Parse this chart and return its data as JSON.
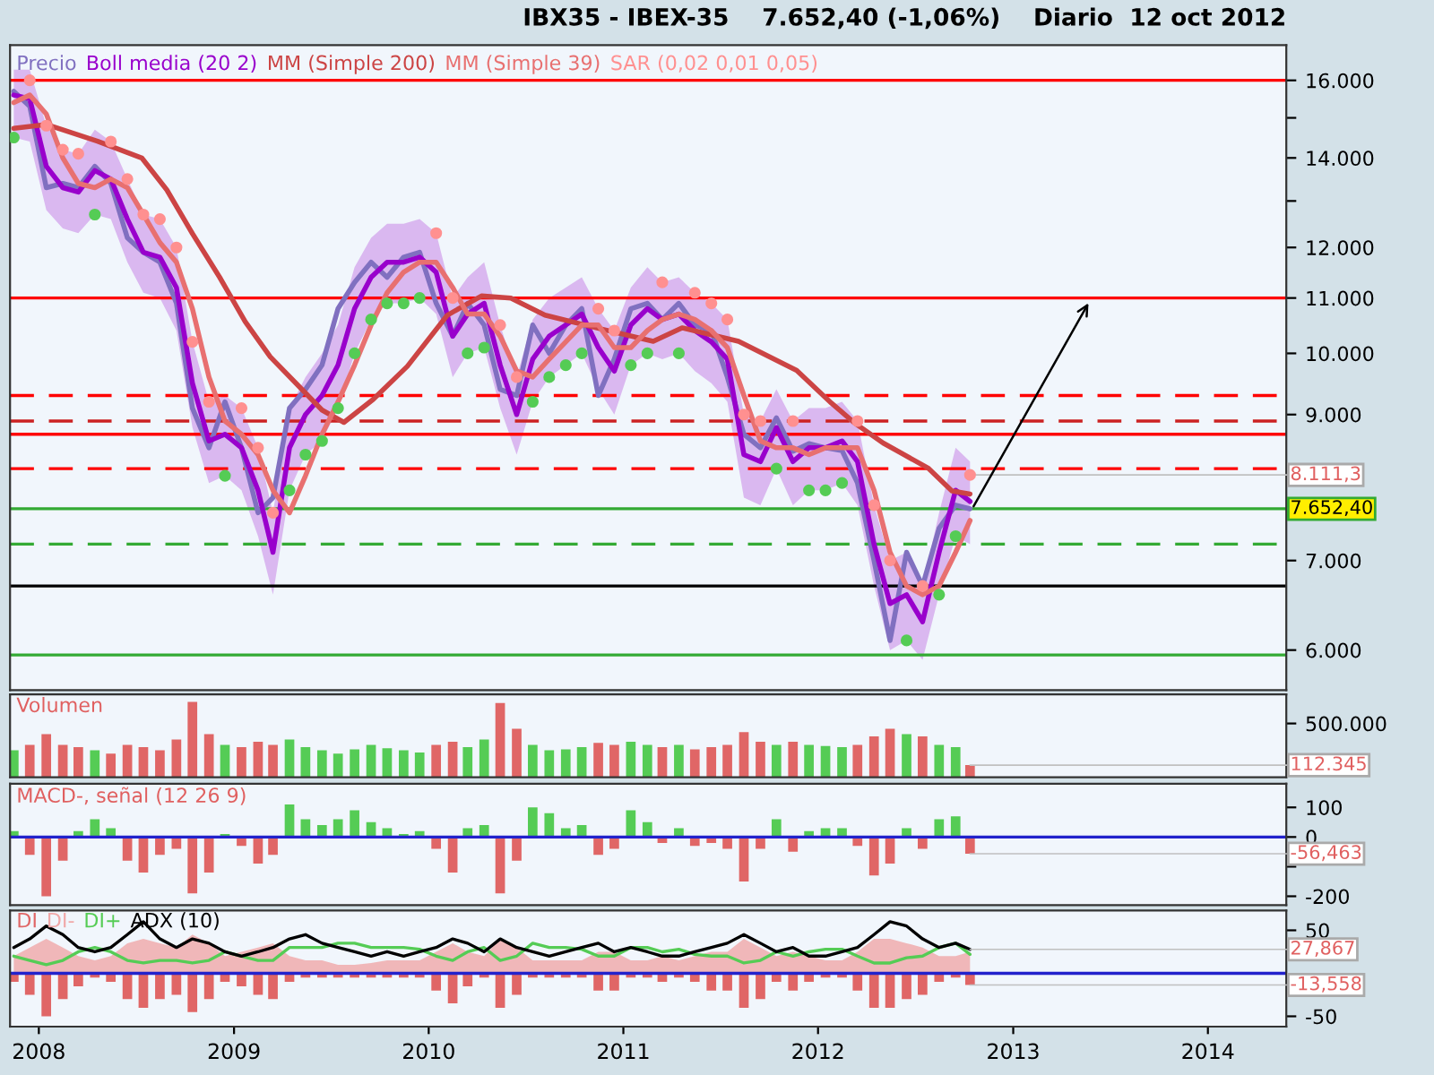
{
  "chart_data": [
    {
      "type": "line",
      "title": "IBX35 - IBEX-35    7.652,40 (-1,06%)    Diario  12 oct 2012",
      "log": "y",
      "x": [
        "2007-11-15",
        "2007-12-15",
        "2008-01-15",
        "2008-02-15",
        "2008-03-15",
        "2008-04-15",
        "2008-05-15",
        "2008-06-15",
        "2008-07-15",
        "2008-08-15",
        "2008-09-15",
        "2008-10-15",
        "2008-11-15",
        "2008-12-15",
        "2009-01-15",
        "2009-02-15",
        "2009-03-15",
        "2009-04-15",
        "2009-05-15",
        "2009-06-15",
        "2009-07-15",
        "2009-08-15",
        "2009-09-15",
        "2009-10-15",
        "2009-11-15",
        "2009-12-15",
        "2010-01-15",
        "2010-02-15",
        "2010-03-15",
        "2010-04-15",
        "2010-05-15",
        "2010-06-15",
        "2010-07-15",
        "2010-08-15",
        "2010-09-15",
        "2010-10-15",
        "2010-11-15",
        "2010-12-15",
        "2011-01-15",
        "2011-02-15",
        "2011-03-15",
        "2011-04-15",
        "2011-05-15",
        "2011-06-15",
        "2011-07-15",
        "2011-08-15",
        "2011-09-15",
        "2011-10-15",
        "2011-11-15",
        "2011-12-15",
        "2012-01-15",
        "2012-02-15",
        "2012-03-15",
        "2012-04-15",
        "2012-05-15",
        "2012-06-15",
        "2012-07-15",
        "2012-08-15",
        "2012-09-15",
        "2012-10-12"
      ],
      "series": [
        {
          "name": "Precio",
          "type": "line",
          "color": "#8070c0",
          "values": [
            15700,
            15300,
            13300,
            13400,
            13300,
            13800,
            13400,
            12200,
            11900,
            11700,
            10900,
            9100,
            8500,
            9200,
            8500,
            7600,
            7800,
            9100,
            9400,
            9800,
            10800,
            11300,
            11700,
            11400,
            11800,
            11900,
            10900,
            10300,
            10900,
            10500,
            9400,
            9300,
            10500,
            10000,
            10500,
            10800,
            9300,
            9900,
            10800,
            10900,
            10600,
            10900,
            10500,
            10400,
            9600,
            8700,
            8500,
            8950,
            8450,
            8560,
            8500,
            8460,
            8000,
            7000,
            6100,
            7100,
            6700,
            7400,
            7700,
            7652.4
          ]
        },
        {
          "name": "Boll media (20 2)",
          "type": "line",
          "color": "#9900cc",
          "values": [
            15600,
            15500,
            13800,
            13300,
            13200,
            13700,
            13500,
            12600,
            11900,
            11800,
            11200,
            9500,
            8600,
            8700,
            8500,
            7900,
            7100,
            8500,
            9000,
            9300,
            9800,
            10800,
            11400,
            11700,
            11700,
            11800,
            11500,
            10300,
            10700,
            10900,
            9800,
            9000,
            9900,
            10300,
            10500,
            10700,
            10100,
            9700,
            10500,
            10800,
            10600,
            10700,
            10400,
            10200,
            9900,
            8400,
            8300,
            8800,
            8300,
            8500,
            8500,
            8600,
            8300,
            7200,
            6500,
            6600,
            6300,
            7100,
            7900,
            7750
          ],
          "lower": [
            14500,
            14400,
            12800,
            12400,
            12300,
            12700,
            12600,
            11700,
            11100,
            11000,
            10400,
            8800,
            8000,
            8100,
            7900,
            7300,
            6600,
            7900,
            8400,
            8600,
            9100,
            10000,
            10600,
            10900,
            10900,
            11000,
            10700,
            9600,
            10000,
            10100,
            9100,
            8400,
            9200,
            9600,
            9800,
            10000,
            9400,
            9000,
            9800,
            10000,
            9900,
            10000,
            9700,
            9500,
            9200,
            7800,
            7700,
            8200,
            7700,
            7900,
            7900,
            8000,
            7700,
            6700,
            6000,
            6100,
            5900,
            6600,
            7300,
            7200
          ],
          "upper": [
            16300,
            16300,
            14800,
            14200,
            14100,
            14700,
            14400,
            13500,
            12700,
            12600,
            12000,
            10200,
            9200,
            9300,
            9100,
            8500,
            7600,
            9100,
            9600,
            10000,
            10500,
            11600,
            12200,
            12500,
            12500,
            12600,
            12300,
            11000,
            11400,
            11700,
            10500,
            9600,
            10600,
            11000,
            11200,
            11400,
            10800,
            10400,
            11200,
            11600,
            11300,
            11400,
            11100,
            10900,
            10600,
            9000,
            8900,
            9400,
            8900,
            9100,
            9100,
            9200,
            8900,
            7700,
            7000,
            7100,
            6700,
            7600,
            8500,
            8300
          ]
        },
        {
          "name": "MM (Simple 200)",
          "type": "line",
          "color": "#cc4444",
          "x": [
            "2007-11-15",
            "2008-01-15",
            "2008-04-20",
            "2008-07-12",
            "2008-08-28",
            "2008-10-15",
            "2008-12-05",
            "2009-01-22",
            "2009-03-10",
            "2009-04-27",
            "2009-06-15",
            "2009-07-26",
            "2009-09-19",
            "2009-11-22",
            "2010-02-05",
            "2010-04-10",
            "2010-06-04",
            "2010-08-07",
            "2010-11-11",
            "2011-02-26",
            "2011-04-21",
            "2011-08-05",
            "2011-11-22",
            "2012-01-26",
            "2012-03-08",
            "2012-05-02",
            "2012-07-25",
            "2012-09-08",
            "2012-10-12"
          ],
          "values": [
            14730,
            14830,
            14410,
            14000,
            13250,
            12290,
            11400,
            10560,
            9940,
            9500,
            9070,
            8880,
            9240,
            9780,
            10680,
            11040,
            11000,
            10680,
            10450,
            10210,
            10450,
            10210,
            9710,
            9180,
            8880,
            8570,
            8210,
            7890,
            7850
          ]
        },
        {
          "name": "MM (Simple 39)",
          "type": "line",
          "color": "#e87070",
          "values": [
            15400,
            15600,
            15100,
            14000,
            13400,
            13300,
            13500,
            13300,
            12700,
            12100,
            11700,
            10800,
            9600,
            8900,
            8700,
            8400,
            7900,
            7600,
            8100,
            8700,
            9200,
            9800,
            10500,
            11100,
            11500,
            11700,
            11700,
            11200,
            10700,
            10700,
            10300,
            9700,
            9600,
            9900,
            10200,
            10500,
            10500,
            10100,
            10100,
            10400,
            10600,
            10700,
            10600,
            10400,
            10100,
            9300,
            8600,
            8500,
            8500,
            8400,
            8500,
            8500,
            8500,
            7900,
            7100,
            6700,
            6600,
            6700,
            7100,
            7500
          ]
        },
        {
          "name": "SAR (0,02 0,01 0,05)",
          "type": "scatter",
          "color": "#ff9090",
          "values": [
            14500,
            16000,
            14800,
            14200,
            14100,
            12700,
            14400,
            13500,
            12700,
            12600,
            12000,
            10200,
            9200,
            8100,
            9100,
            8500,
            7600,
            7900,
            8400,
            8600,
            9100,
            10000,
            10600,
            10900,
            10900,
            11000,
            12300,
            11000,
            10000,
            10100,
            10500,
            9600,
            9200,
            9600,
            9800,
            10000,
            10800,
            10400,
            9800,
            10000,
            11300,
            10000,
            11100,
            10900,
            10600,
            9000,
            8900,
            8200,
            8900,
            7900,
            7900,
            8000,
            8900,
            7700,
            7000,
            6100,
            6700,
            6600,
            7300,
            8111.3
          ],
          "colors": [
            "#55cc55",
            "#ff9090",
            "#ff9090",
            "#ff9090",
            "#ff9090",
            "#55cc55",
            "#ff9090",
            "#ff9090",
            "#ff9090",
            "#ff9090",
            "#ff9090",
            "#ff9090",
            "#ff9090",
            "#55cc55",
            "#ff9090",
            "#ff9090",
            "#ff9090",
            "#55cc55",
            "#55cc55",
            "#55cc55",
            "#55cc55",
            "#55cc55",
            "#55cc55",
            "#55cc55",
            "#55cc55",
            "#55cc55",
            "#ff9090",
            "#ff9090",
            "#55cc55",
            "#55cc55",
            "#ff9090",
            "#ff9090",
            "#55cc55",
            "#55cc55",
            "#55cc55",
            "#55cc55",
            "#ff9090",
            "#ff9090",
            "#55cc55",
            "#55cc55",
            "#ff9090",
            "#55cc55",
            "#ff9090",
            "#ff9090",
            "#ff9090",
            "#ff9090",
            "#ff9090",
            "#55cc55",
            "#ff9090",
            "#55cc55",
            "#55cc55",
            "#55cc55",
            "#ff9090",
            "#ff9090",
            "#ff9090",
            "#55cc55",
            "#ff9090",
            "#55cc55",
            "#55cc55",
            "#ff9090"
          ]
        }
      ],
      "xlim": [
        "2007-11-08",
        "2014-05-28"
      ],
      "ylim": [
        5600,
        17000
      ],
      "yticks": [
        {
          "value": 6000,
          "label": "6.000"
        },
        {
          "value": 7000,
          "label": "7.000"
        },
        {
          "value": 8000,
          "label": null
        },
        {
          "value": 9000,
          "label": "9.000"
        },
        {
          "value": 10000,
          "label": "10.000"
        },
        {
          "value": 11000,
          "label": "11.000"
        },
        {
          "value": 12000,
          "label": "12.000"
        },
        {
          "value": 13000,
          "label": null
        },
        {
          "value": 14000,
          "label": "14.000"
        },
        {
          "value": 15000,
          "label": null
        },
        {
          "value": 16000,
          "label": "16.000"
        }
      ],
      "tick_labels": "y",
      "ref_lines": [
        {
          "axis": "y",
          "value": 16000,
          "color": "#ff0000",
          "line_style": "solid"
        },
        {
          "axis": "y",
          "value": 11000,
          "color": "#ff0000",
          "line_style": "solid"
        },
        {
          "axis": "y",
          "value": 9300,
          "color": "#ff0000",
          "line_style": "dashed"
        },
        {
          "axis": "y",
          "value": 8900,
          "color": "#cc2222",
          "line_style": "dashed"
        },
        {
          "axis": "y",
          "value": 8700,
          "color": "#ff0000",
          "line_style": "solid"
        },
        {
          "axis": "y",
          "value": 8200,
          "color": "#ff0000",
          "line_style": "dashed"
        },
        {
          "axis": "y",
          "value": 7652.4,
          "color": "#33aa33",
          "line_style": "solid",
          "label": "7.652,40"
        },
        {
          "axis": "y",
          "value": 7200,
          "color": "#33aa33",
          "line_style": "dashed"
        },
        {
          "axis": "y",
          "value": 6700,
          "color": "#000000",
          "line_style": "solid"
        },
        {
          "axis": "y",
          "value": 5950,
          "color": "#33aa33",
          "line_style": "solid"
        }
      ],
      "annotations": [
        {
          "text": "8.111,3",
          "x": "2012-10-12",
          "y": 8111.3
        }
      ],
      "legend": "top left"
    },
    {
      "type": "bar",
      "title": "Volumen",
      "x": [
        "2007-11-15",
        "2007-12-15",
        "2008-01-15",
        "2008-02-15",
        "2008-03-15",
        "2008-04-15",
        "2008-05-15",
        "2008-06-15",
        "2008-07-15",
        "2008-08-15",
        "2008-09-15",
        "2008-10-15",
        "2008-11-15",
        "2008-12-15",
        "2009-01-15",
        "2009-02-15",
        "2009-03-15",
        "2009-04-15",
        "2009-05-15",
        "2009-06-15",
        "2009-07-15",
        "2009-08-15",
        "2009-09-15",
        "2009-10-15",
        "2009-11-15",
        "2009-12-15",
        "2010-01-15",
        "2010-02-15",
        "2010-03-15",
        "2010-04-15",
        "2010-05-15",
        "2010-06-15",
        "2010-07-15",
        "2010-08-15",
        "2010-09-15",
        "2010-10-15",
        "2010-11-15",
        "2010-12-15",
        "2011-01-15",
        "2011-02-15",
        "2011-03-15",
        "2011-04-15",
        "2011-05-15",
        "2011-06-15",
        "2011-07-15",
        "2011-08-15",
        "2011-09-15",
        "2011-10-15",
        "2011-11-15",
        "2011-12-15",
        "2012-01-15",
        "2012-02-15",
        "2012-03-15",
        "2012-04-15",
        "2012-05-15",
        "2012-06-15",
        "2012-07-15",
        "2012-08-15",
        "2012-09-15",
        "2012-10-12"
      ],
      "values": [
        250000,
        300000,
        400000,
        300000,
        280000,
        250000,
        220000,
        300000,
        280000,
        250000,
        350000,
        700000,
        400000,
        300000,
        280000,
        330000,
        300000,
        350000,
        280000,
        250000,
        220000,
        260000,
        300000,
        270000,
        250000,
        230000,
        300000,
        330000,
        280000,
        350000,
        690000,
        450000,
        300000,
        250000,
        260000,
        280000,
        320000,
        300000,
        330000,
        300000,
        280000,
        300000,
        260000,
        280000,
        300000,
        420000,
        330000,
        300000,
        330000,
        300000,
        290000,
        280000,
        300000,
        380000,
        450000,
        400000,
        380000,
        300000,
        280000,
        112345
      ],
      "colors": [
        "#55cc55",
        "#e06666",
        "#e06666",
        "#e06666",
        "#e06666",
        "#55cc55",
        "#e06666",
        "#e06666",
        "#e06666",
        "#e06666",
        "#e06666",
        "#e06666",
        "#e06666",
        "#55cc55",
        "#e06666",
        "#e06666",
        "#e06666",
        "#55cc55",
        "#55cc55",
        "#55cc55",
        "#55cc55",
        "#55cc55",
        "#55cc55",
        "#55cc55",
        "#55cc55",
        "#55cc55",
        "#e06666",
        "#e06666",
        "#55cc55",
        "#55cc55",
        "#e06666",
        "#e06666",
        "#55cc55",
        "#55cc55",
        "#55cc55",
        "#55cc55",
        "#e06666",
        "#e06666",
        "#55cc55",
        "#55cc55",
        "#e06666",
        "#55cc55",
        "#e06666",
        "#e06666",
        "#e06666",
        "#e06666",
        "#e06666",
        "#55cc55",
        "#e06666",
        "#55cc55",
        "#55cc55",
        "#55cc55",
        "#e06666",
        "#e06666",
        "#e06666",
        "#55cc55",
        "#e06666",
        "#55cc55",
        "#55cc55",
        "#e06666"
      ],
      "xlim": [
        "2007-11-08",
        "2014-05-28"
      ],
      "ylim": [
        0,
        770000
      ],
      "yticks": [
        {
          "value": 500000,
          "label": "500.000"
        }
      ],
      "tick_labels": "y",
      "annotations": [
        {
          "text": "112.345",
          "x": "2012-10-12",
          "y": 112345
        }
      ]
    },
    {
      "type": "bar",
      "title": "MACD-, señal (12 26 9)",
      "x": [
        "2007-11-15",
        "2007-12-15",
        "2008-01-15",
        "2008-02-15",
        "2008-03-15",
        "2008-04-15",
        "2008-05-15",
        "2008-06-15",
        "2008-07-15",
        "2008-08-15",
        "2008-09-15",
        "2008-10-15",
        "2008-11-15",
        "2008-12-15",
        "2009-01-15",
        "2009-02-15",
        "2009-03-15",
        "2009-04-15",
        "2009-05-15",
        "2009-06-15",
        "2009-07-15",
        "2009-08-15",
        "2009-09-15",
        "2009-10-15",
        "2009-11-15",
        "2009-12-15",
        "2010-01-15",
        "2010-02-15",
        "2010-03-15",
        "2010-04-15",
        "2010-05-15",
        "2010-06-15",
        "2010-07-15",
        "2010-08-15",
        "2010-09-15",
        "2010-10-15",
        "2010-11-15",
        "2010-12-15",
        "2011-01-15",
        "2011-02-15",
        "2011-03-15",
        "2011-04-15",
        "2011-05-15",
        "2011-06-15",
        "2011-07-15",
        "2011-08-15",
        "2011-09-15",
        "2011-10-15",
        "2011-11-15",
        "2011-12-15",
        "2012-01-15",
        "2012-02-15",
        "2012-03-15",
        "2012-04-15",
        "2012-05-15",
        "2012-06-15",
        "2012-07-15",
        "2012-08-15",
        "2012-09-15",
        "2012-10-12"
      ],
      "values": [
        20,
        -60,
        -200,
        -80,
        20,
        60,
        30,
        -80,
        -120,
        -60,
        -40,
        -190,
        -120,
        10,
        -30,
        -90,
        -60,
        110,
        60,
        40,
        60,
        90,
        50,
        30,
        10,
        20,
        -40,
        -120,
        30,
        40,
        -190,
        -80,
        100,
        80,
        30,
        40,
        -60,
        -40,
        90,
        50,
        -20,
        30,
        -30,
        -20,
        -40,
        -150,
        -40,
        60,
        -50,
        20,
        30,
        30,
        -30,
        -130,
        -90,
        30,
        -40,
        60,
        70,
        -56.463
      ],
      "colors": [
        "#55cc55",
        "#e06666",
        "#e06666",
        "#e06666",
        "#55cc55",
        "#55cc55",
        "#55cc55",
        "#e06666",
        "#e06666",
        "#e06666",
        "#e06666",
        "#e06666",
        "#e06666",
        "#55cc55",
        "#e06666",
        "#e06666",
        "#e06666",
        "#55cc55",
        "#55cc55",
        "#55cc55",
        "#55cc55",
        "#55cc55",
        "#55cc55",
        "#55cc55",
        "#55cc55",
        "#55cc55",
        "#e06666",
        "#e06666",
        "#55cc55",
        "#55cc55",
        "#e06666",
        "#e06666",
        "#55cc55",
        "#55cc55",
        "#55cc55",
        "#55cc55",
        "#e06666",
        "#e06666",
        "#55cc55",
        "#55cc55",
        "#e06666",
        "#55cc55",
        "#e06666",
        "#e06666",
        "#e06666",
        "#e06666",
        "#e06666",
        "#55cc55",
        "#e06666",
        "#55cc55",
        "#55cc55",
        "#55cc55",
        "#e06666",
        "#e06666",
        "#e06666",
        "#55cc55",
        "#e06666",
        "#55cc55",
        "#55cc55",
        "#e06666"
      ],
      "xlim": [
        "2007-11-08",
        "2014-05-28"
      ],
      "ylim": [
        -230,
        180
      ],
      "yticks": [
        100,
        0,
        {
          "value": -100,
          "label": null
        },
        -200
      ],
      "tick_labels": "y",
      "ref_lines": [
        {
          "axis": "y",
          "value": 0,
          "color": "#2222cc",
          "line_style": "solid"
        }
      ],
      "annotations": [
        {
          "text": "-56,463",
          "x": "2012-10-12",
          "y": -56.463
        }
      ]
    },
    {
      "type": "line",
      "x": [
        "2007-11-15",
        "2007-12-15",
        "2008-01-15",
        "2008-02-15",
        "2008-03-15",
        "2008-04-15",
        "2008-05-15",
        "2008-06-15",
        "2008-07-15",
        "2008-08-15",
        "2008-09-15",
        "2008-10-15",
        "2008-11-15",
        "2008-12-15",
        "2009-01-15",
        "2009-02-15",
        "2009-03-15",
        "2009-04-15",
        "2009-05-15",
        "2009-06-15",
        "2009-07-15",
        "2009-08-15",
        "2009-09-15",
        "2009-10-15",
        "2009-11-15",
        "2009-12-15",
        "2010-01-15",
        "2010-02-15",
        "2010-03-15",
        "2010-04-15",
        "2010-05-15",
        "2010-06-15",
        "2010-07-15",
        "2010-08-15",
        "2010-09-15",
        "2010-10-15",
        "2010-11-15",
        "2010-12-15",
        "2011-01-15",
        "2011-02-15",
        "2011-03-15",
        "2011-04-15",
        "2011-05-15",
        "2011-06-15",
        "2011-07-15",
        "2011-08-15",
        "2011-09-15",
        "2011-10-15",
        "2011-11-15",
        "2011-12-15",
        "2012-01-15",
        "2012-02-15",
        "2012-03-15",
        "2012-04-15",
        "2012-05-15",
        "2012-06-15",
        "2012-07-15",
        "2012-08-15",
        "2012-09-15",
        "2012-10-12"
      ],
      "series": [
        {
          "name": "DI",
          "type": "bar",
          "color": "#e06666",
          "values": [
            -10,
            -25,
            -50,
            -30,
            -15,
            -5,
            -10,
            -30,
            -40,
            -30,
            -25,
            -45,
            -30,
            -10,
            -15,
            -25,
            -30,
            -10,
            -5,
            -5,
            -5,
            -5,
            -5,
            -5,
            -5,
            -5,
            -20,
            -35,
            -15,
            -5,
            -40,
            -25,
            -5,
            -5,
            -5,
            -5,
            -20,
            -20,
            -5,
            -5,
            -10,
            -5,
            -10,
            -20,
            -20,
            -40,
            -30,
            -10,
            -20,
            -10,
            -5,
            -5,
            -20,
            -40,
            -40,
            -30,
            -25,
            -10,
            -5,
            -13.558
          ]
        },
        {
          "name": "DI-",
          "type": "area",
          "color": "#f0a8a8",
          "values": [
            20,
            30,
            40,
            30,
            20,
            15,
            20,
            35,
            40,
            35,
            30,
            45,
            35,
            20,
            25,
            30,
            35,
            20,
            15,
            15,
            10,
            10,
            12,
            15,
            15,
            15,
            25,
            35,
            25,
            20,
            40,
            30,
            15,
            15,
            15,
            15,
            25,
            25,
            15,
            15,
            20,
            15,
            20,
            25,
            25,
            40,
            30,
            20,
            25,
            20,
            15,
            15,
            25,
            40,
            40,
            35,
            30,
            20,
            20,
            25
          ]
        },
        {
          "name": "DI+",
          "type": "line",
          "color": "#55cc55",
          "values": [
            20,
            15,
            10,
            15,
            25,
            30,
            25,
            15,
            12,
            15,
            15,
            12,
            15,
            25,
            20,
            15,
            15,
            30,
            30,
            30,
            35,
            35,
            30,
            30,
            30,
            28,
            20,
            15,
            25,
            30,
            15,
            20,
            35,
            30,
            30,
            28,
            20,
            20,
            30,
            30,
            25,
            28,
            22,
            20,
            20,
            12,
            15,
            25,
            20,
            25,
            28,
            28,
            20,
            12,
            12,
            18,
            20,
            30,
            35,
            22
          ]
        },
        {
          "name": "ADX (10)",
          "type": "line",
          "color": "#000000",
          "values": [
            30,
            40,
            55,
            45,
            30,
            25,
            30,
            45,
            60,
            40,
            30,
            40,
            35,
            25,
            20,
            25,
            30,
            40,
            45,
            35,
            30,
            25,
            20,
            25,
            20,
            25,
            30,
            40,
            35,
            25,
            40,
            30,
            25,
            20,
            25,
            30,
            35,
            25,
            30,
            25,
            20,
            20,
            25,
            30,
            35,
            45,
            35,
            25,
            30,
            20,
            20,
            25,
            30,
            45,
            60,
            55,
            40,
            30,
            35,
            27.867
          ]
        }
      ],
      "xlim": [
        "2007-11-08",
        "2014-05-28"
      ],
      "xticks": [
        {
          "value": "2008-01-01",
          "label": "2008"
        },
        {
          "value": "2009-01-01",
          "label": "2009"
        },
        {
          "value": "2010-01-01",
          "label": "2010"
        },
        {
          "value": "2011-01-01",
          "label": "2011"
        },
        {
          "value": "2012-01-01",
          "label": "2012"
        },
        {
          "value": "2013-01-01",
          "label": "2013"
        },
        {
          "value": "2014-01-01",
          "label": "2014"
        }
      ],
      "ylim": [
        -62,
        73
      ],
      "yticks": [
        50,
        -50
      ],
      "ref_lines": [
        {
          "axis": "y",
          "value": 0,
          "color": "#2222cc",
          "line_style": "solid"
        }
      ],
      "annotations": [
        {
          "text": "27,867",
          "x": "2012-10-12",
          "y": 27.867
        },
        {
          "text": "-13,558",
          "x": "2012-10-12",
          "y": -13.558
        }
      ],
      "legend": "top left"
    }
  ]
}
